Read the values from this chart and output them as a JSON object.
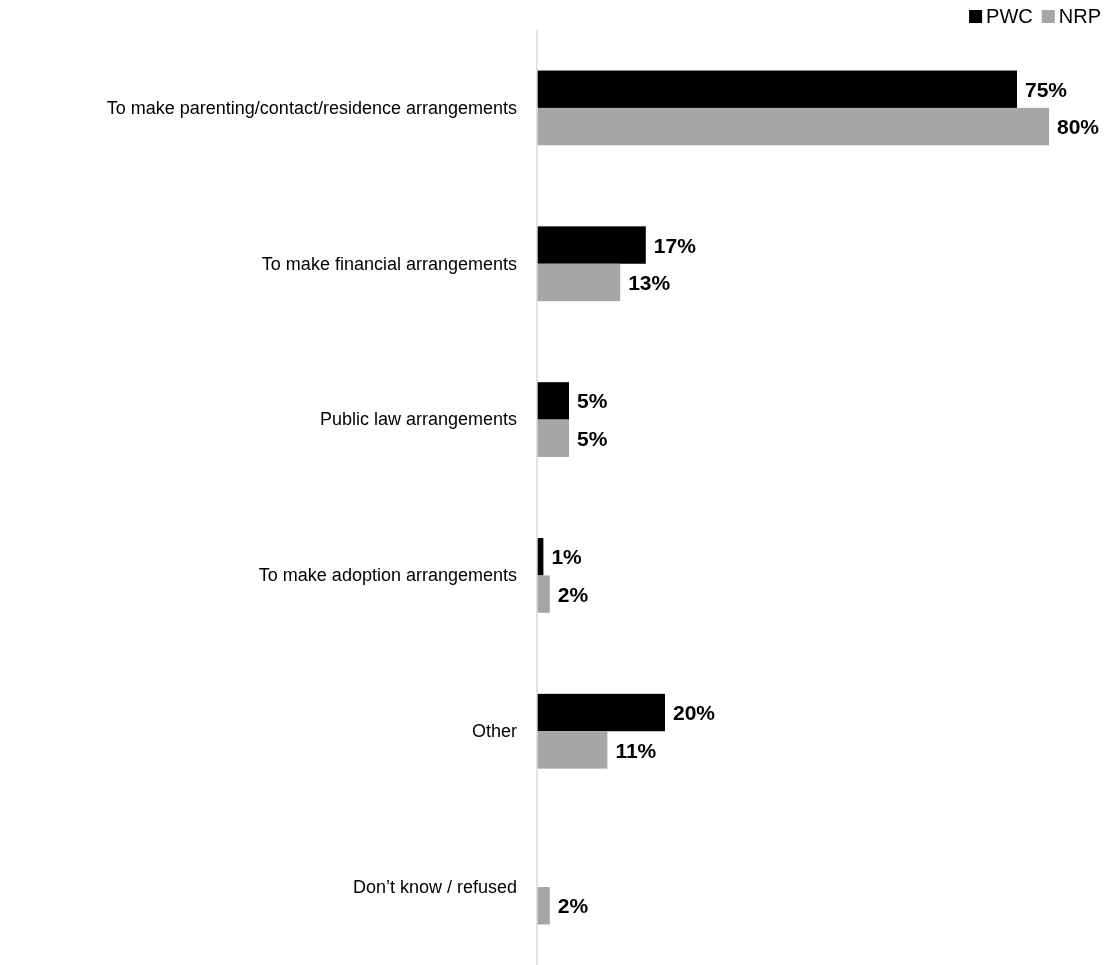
{
  "chart_data": {
    "type": "bar",
    "orientation": "horizontal",
    "categories": [
      "To make parenting/contact/residence arrangements",
      "To make financial arrangements",
      "Public law arrangements",
      "To make adoption arrangements",
      "Other",
      "Don’t know / refused"
    ],
    "series": [
      {
        "name": "PWC",
        "color": "#000000",
        "values": [
          75,
          17,
          5,
          1,
          20,
          null
        ],
        "value_labels": [
          "75%",
          "17%",
          "5%",
          "1%",
          "20%",
          null
        ]
      },
      {
        "name": "NRP",
        "color": "#a6a6a6",
        "values": [
          80,
          13,
          5,
          2,
          11,
          2
        ],
        "value_labels": [
          "80%",
          "13%",
          "5%",
          "2%",
          "11%",
          "2%"
        ]
      }
    ],
    "legend": "top right",
    "tick_labels": "y"
  }
}
